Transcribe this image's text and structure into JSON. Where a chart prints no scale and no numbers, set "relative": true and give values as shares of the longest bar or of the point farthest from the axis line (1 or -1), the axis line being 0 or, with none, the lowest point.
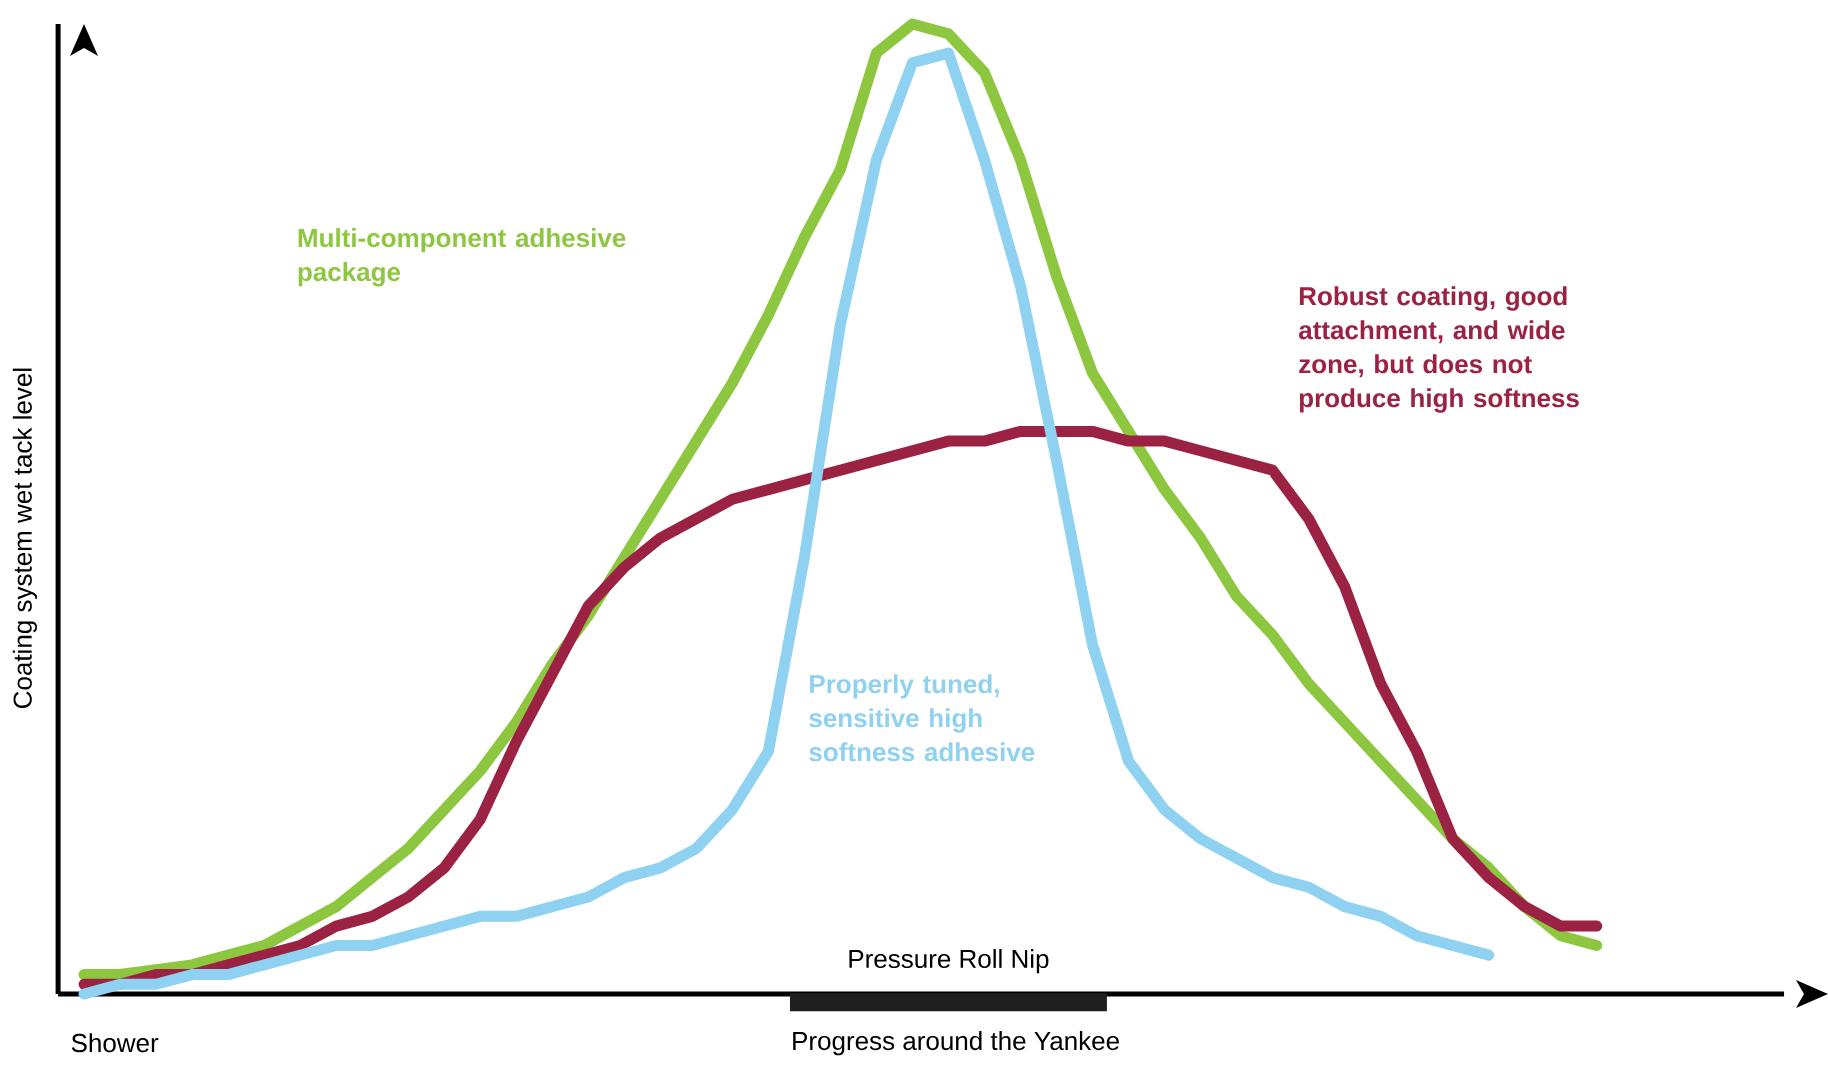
{
  "chart_data": {
    "type": "line",
    "relative": true,
    "xlabel": "Progress around the Yankee",
    "ylabel": "Coating system wet tack level",
    "annotations": [
      "Shower",
      "Pressure Roll Nip"
    ],
    "categories": [
      null,
      null,
      null,
      null,
      null,
      null,
      null,
      null,
      null,
      null,
      null,
      null,
      null,
      null,
      null,
      null,
      null,
      null,
      null,
      null,
      null,
      null,
      null,
      null,
      null,
      null,
      null,
      null,
      null,
      null,
      null,
      null,
      null,
      null,
      null,
      null,
      null,
      null,
      null,
      null,
      null,
      null,
      null
    ],
    "series": [
      {
        "name": "Multi-component adhesive package",
        "color": "#8dc63f",
        "values": [
          0.02,
          0.02,
          0.025,
          0.03,
          0.04,
          0.05,
          0.07,
          0.09,
          0.12,
          0.15,
          0.19,
          0.23,
          0.28,
          0.34,
          0.39,
          0.45,
          0.51,
          0.57,
          0.63,
          0.7,
          0.78,
          0.85,
          0.97,
          1.0,
          0.99,
          0.95,
          0.86,
          0.74,
          0.64,
          0.58,
          0.52,
          0.47,
          0.41,
          0.37,
          0.32,
          0.28,
          0.24,
          0.2,
          0.16,
          0.13,
          0.09,
          0.06,
          0.05
        ]
      },
      {
        "name": "Robust coating, good attachment, and wide zone, but does not produce high softness",
        "color": "#9b2242",
        "values": [
          0.01,
          0.01,
          0.02,
          0.02,
          0.03,
          0.04,
          0.05,
          0.07,
          0.08,
          0.1,
          0.13,
          0.18,
          0.26,
          0.33,
          0.4,
          0.44,
          0.47,
          0.49,
          0.51,
          0.52,
          0.53,
          0.54,
          0.55,
          0.56,
          0.57,
          0.57,
          0.58,
          0.58,
          0.58,
          0.57,
          0.57,
          0.56,
          0.55,
          0.54,
          0.49,
          0.42,
          0.32,
          0.25,
          0.16,
          0.12,
          0.09,
          0.07,
          0.07
        ]
      },
      {
        "name": "Properly tuned, sensitive high softness adhesive",
        "color": "#8ed1f0",
        "values": [
          0.0,
          0.01,
          0.01,
          0.02,
          0.02,
          0.03,
          0.04,
          0.05,
          0.05,
          0.06,
          0.07,
          0.08,
          0.08,
          0.09,
          0.1,
          0.12,
          0.13,
          0.15,
          0.19,
          0.25,
          0.45,
          0.69,
          0.86,
          0.96,
          0.97,
          0.86,
          0.73,
          0.55,
          0.36,
          0.24,
          0.19,
          0.16,
          0.14,
          0.12,
          0.11,
          0.09,
          0.08,
          0.06,
          0.05,
          0.04,
          null,
          null,
          null
        ]
      }
    ]
  }
}
